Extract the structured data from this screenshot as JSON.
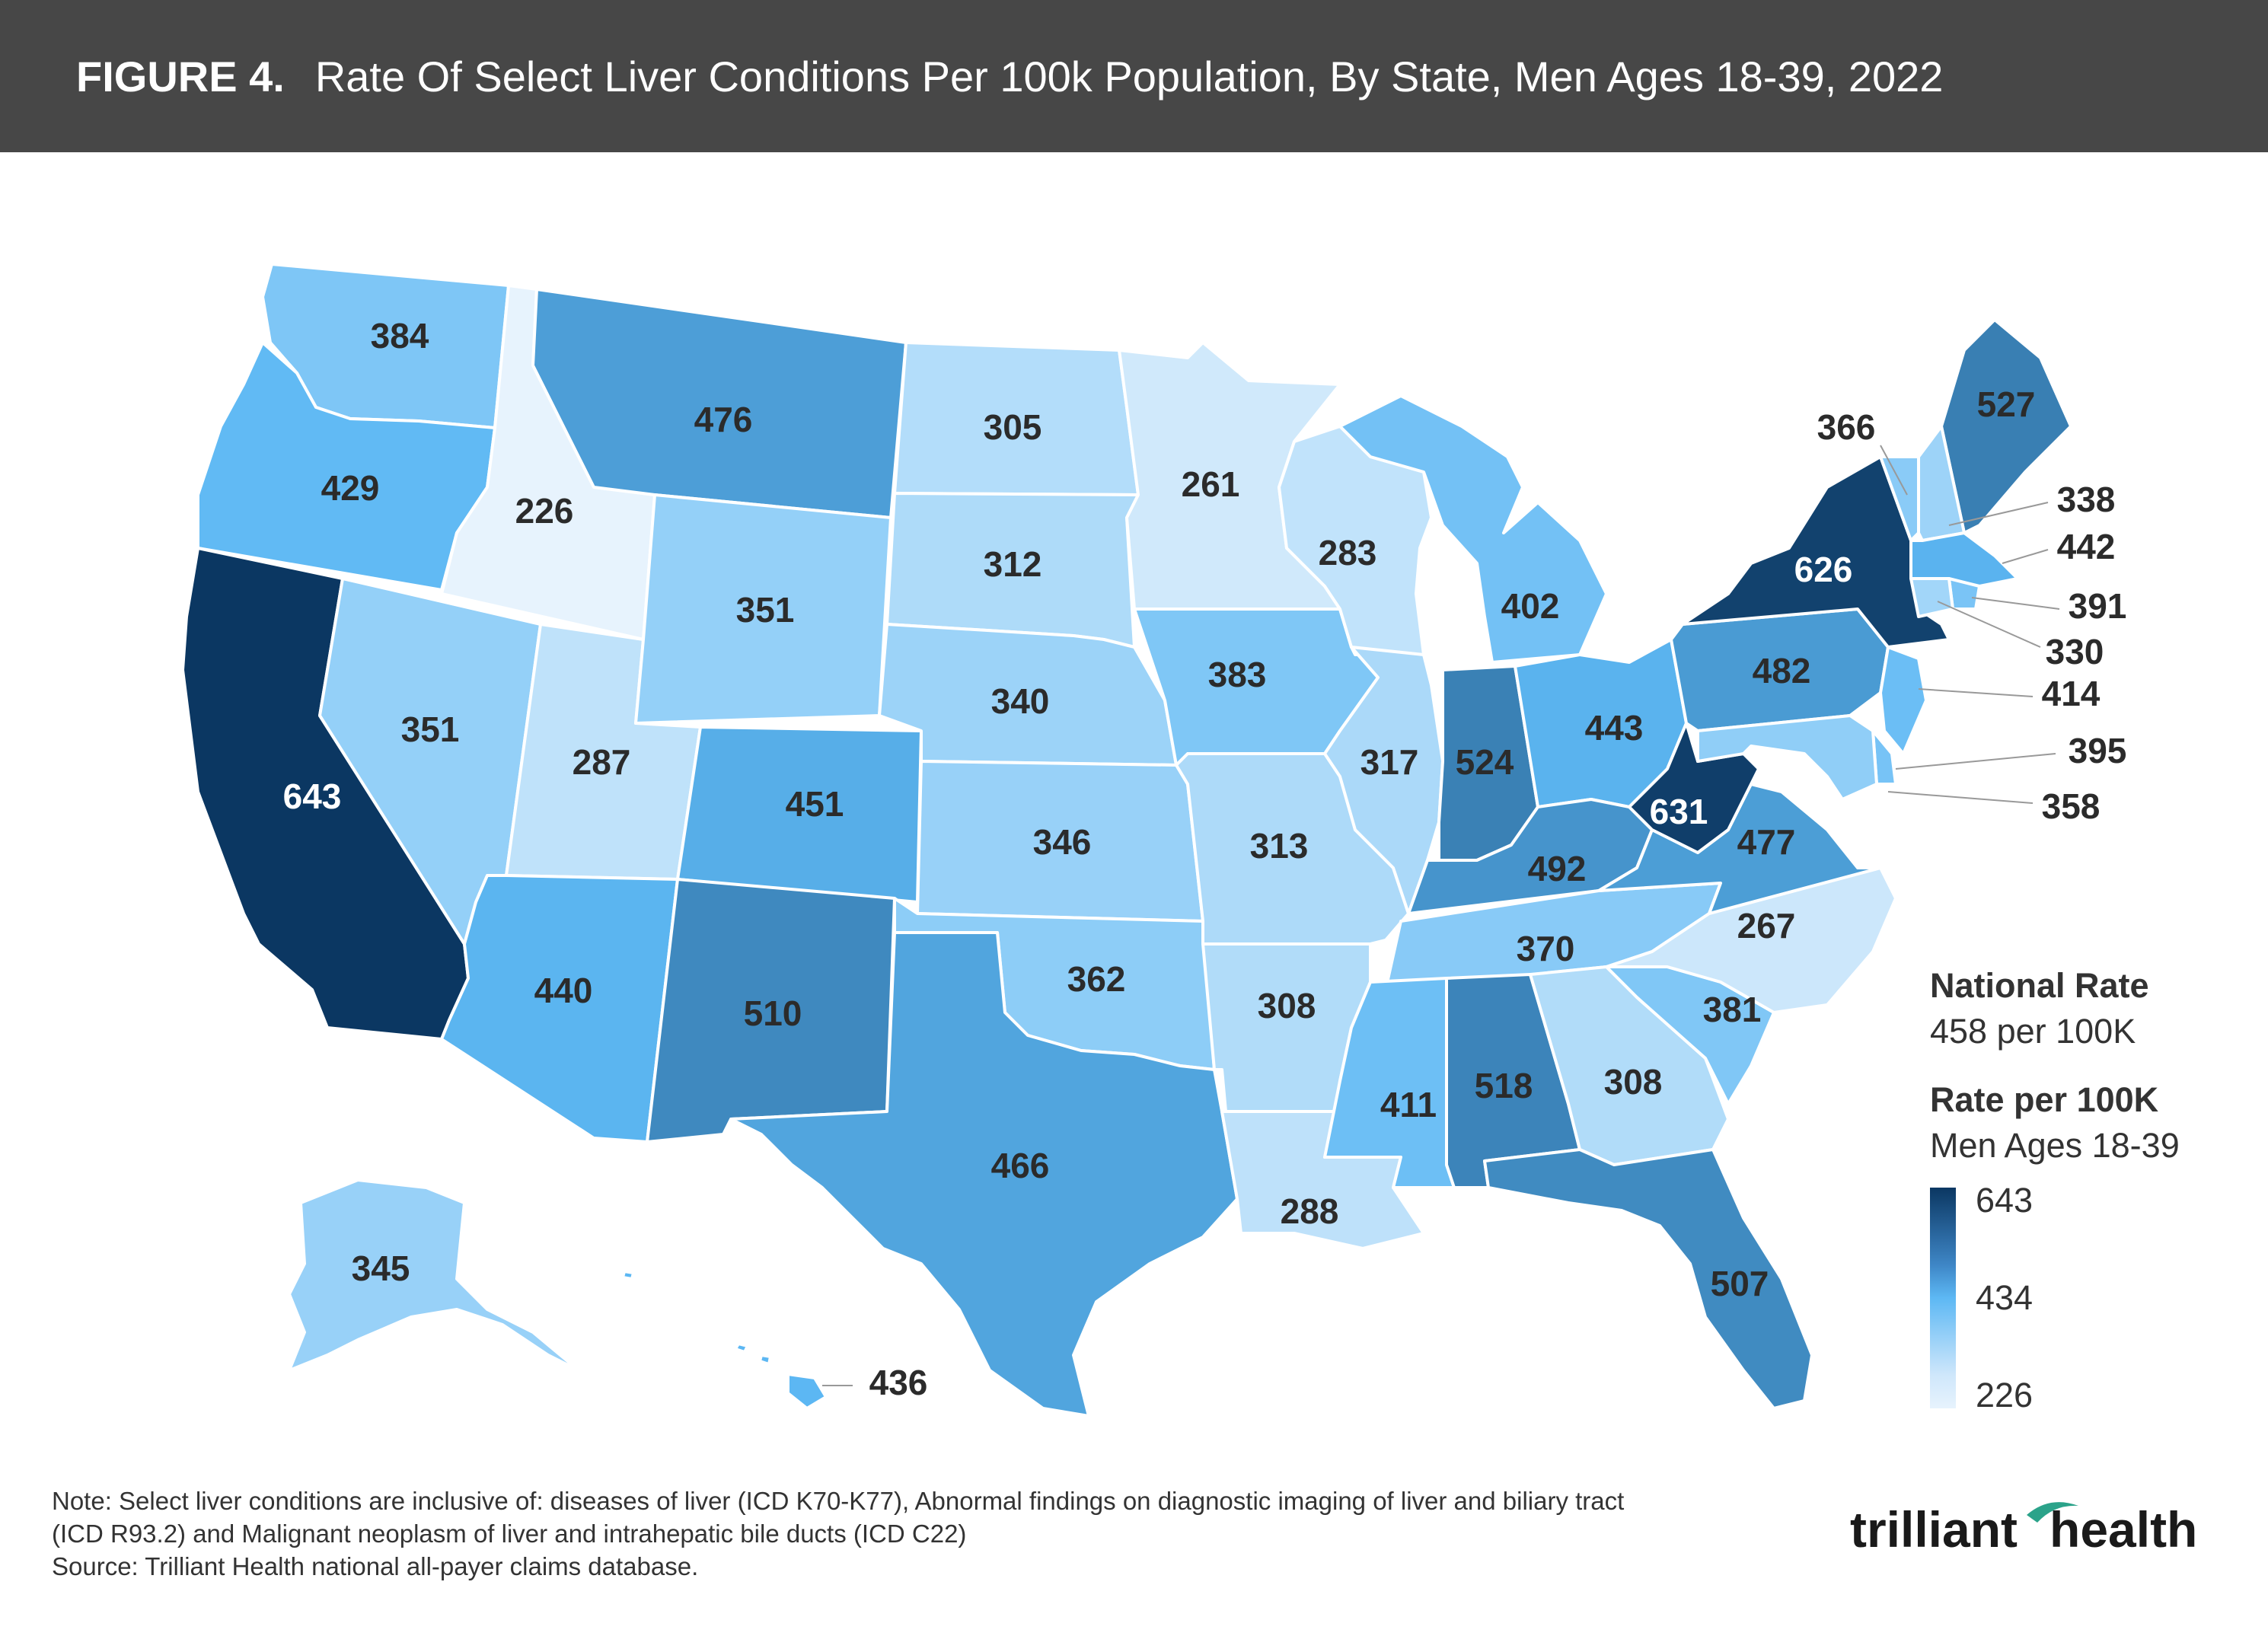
{
  "header": {
    "figure_label": "FIGURE 4.",
    "title": "Rate Of Select Liver Conditions Per 100k Population, By State, Men Ages 18-39, 2022"
  },
  "legend": {
    "national_title": "National Rate",
    "national_value": "458 per 100K",
    "scale_title": "Rate per 100K",
    "scale_subtitle": "Men Ages 18-39",
    "ticks": [
      "643",
      "434",
      "226"
    ],
    "min": 226,
    "max": 643
  },
  "colors": {
    "header_bg": "#474747",
    "scale_low": "#e7f3fd",
    "scale_mid": "#5db8f4",
    "scale_high": "#0b3762"
  },
  "states": [
    {
      "code": "WA",
      "value": 384
    },
    {
      "code": "OR",
      "value": 429
    },
    {
      "code": "CA",
      "value": 643
    },
    {
      "code": "ID",
      "value": 226
    },
    {
      "code": "NV",
      "value": 351
    },
    {
      "code": "UT",
      "value": 287
    },
    {
      "code": "AZ",
      "value": 440
    },
    {
      "code": "MT",
      "value": 476
    },
    {
      "code": "WY",
      "value": 351
    },
    {
      "code": "CO",
      "value": 451
    },
    {
      "code": "NM",
      "value": 510
    },
    {
      "code": "ND",
      "value": 305
    },
    {
      "code": "SD",
      "value": 312
    },
    {
      "code": "NE",
      "value": 340
    },
    {
      "code": "KS",
      "value": 346
    },
    {
      "code": "OK",
      "value": 362
    },
    {
      "code": "TX",
      "value": 466
    },
    {
      "code": "MN",
      "value": 261
    },
    {
      "code": "IA",
      "value": 383
    },
    {
      "code": "MO",
      "value": 313
    },
    {
      "code": "AR",
      "value": 308
    },
    {
      "code": "LA",
      "value": 288
    },
    {
      "code": "WI",
      "value": 283
    },
    {
      "code": "IL",
      "value": 317
    },
    {
      "code": "MI",
      "value": 402
    },
    {
      "code": "IN",
      "value": 524
    },
    {
      "code": "OH",
      "value": 443
    },
    {
      "code": "KY",
      "value": 492
    },
    {
      "code": "TN",
      "value": 370
    },
    {
      "code": "MS",
      "value": 411
    },
    {
      "code": "AL",
      "value": 518
    },
    {
      "code": "GA",
      "value": 308
    },
    {
      "code": "FL",
      "value": 507
    },
    {
      "code": "SC",
      "value": 381
    },
    {
      "code": "NC",
      "value": 267
    },
    {
      "code": "VA",
      "value": 477
    },
    {
      "code": "WV",
      "value": 631
    },
    {
      "code": "PA",
      "value": 482
    },
    {
      "code": "NY",
      "value": 626
    },
    {
      "code": "ME",
      "value": 527
    },
    {
      "code": "VT",
      "value": 366
    },
    {
      "code": "NH",
      "value": 338
    },
    {
      "code": "MA",
      "value": 442
    },
    {
      "code": "RI",
      "value": 391
    },
    {
      "code": "CT",
      "value": 330
    },
    {
      "code": "NJ",
      "value": 414
    },
    {
      "code": "DE",
      "value": 395
    },
    {
      "code": "MD",
      "value": 358
    },
    {
      "code": "AK",
      "value": 345
    },
    {
      "code": "HI",
      "value": 436
    }
  ],
  "notes": [
    "Note: Select liver conditions are inclusive of: diseases of liver (ICD K70-K77), Abnormal findings on diagnostic imaging of liver and biliary tract",
    "(ICD R93.2) and Malignant neoplasm of liver and intrahepatic bile ducts (ICD C22)",
    "Source: Trilliant Health national all-payer claims database."
  ],
  "logo": {
    "text_part1": "trilliant",
    "text_part2": "health"
  }
}
